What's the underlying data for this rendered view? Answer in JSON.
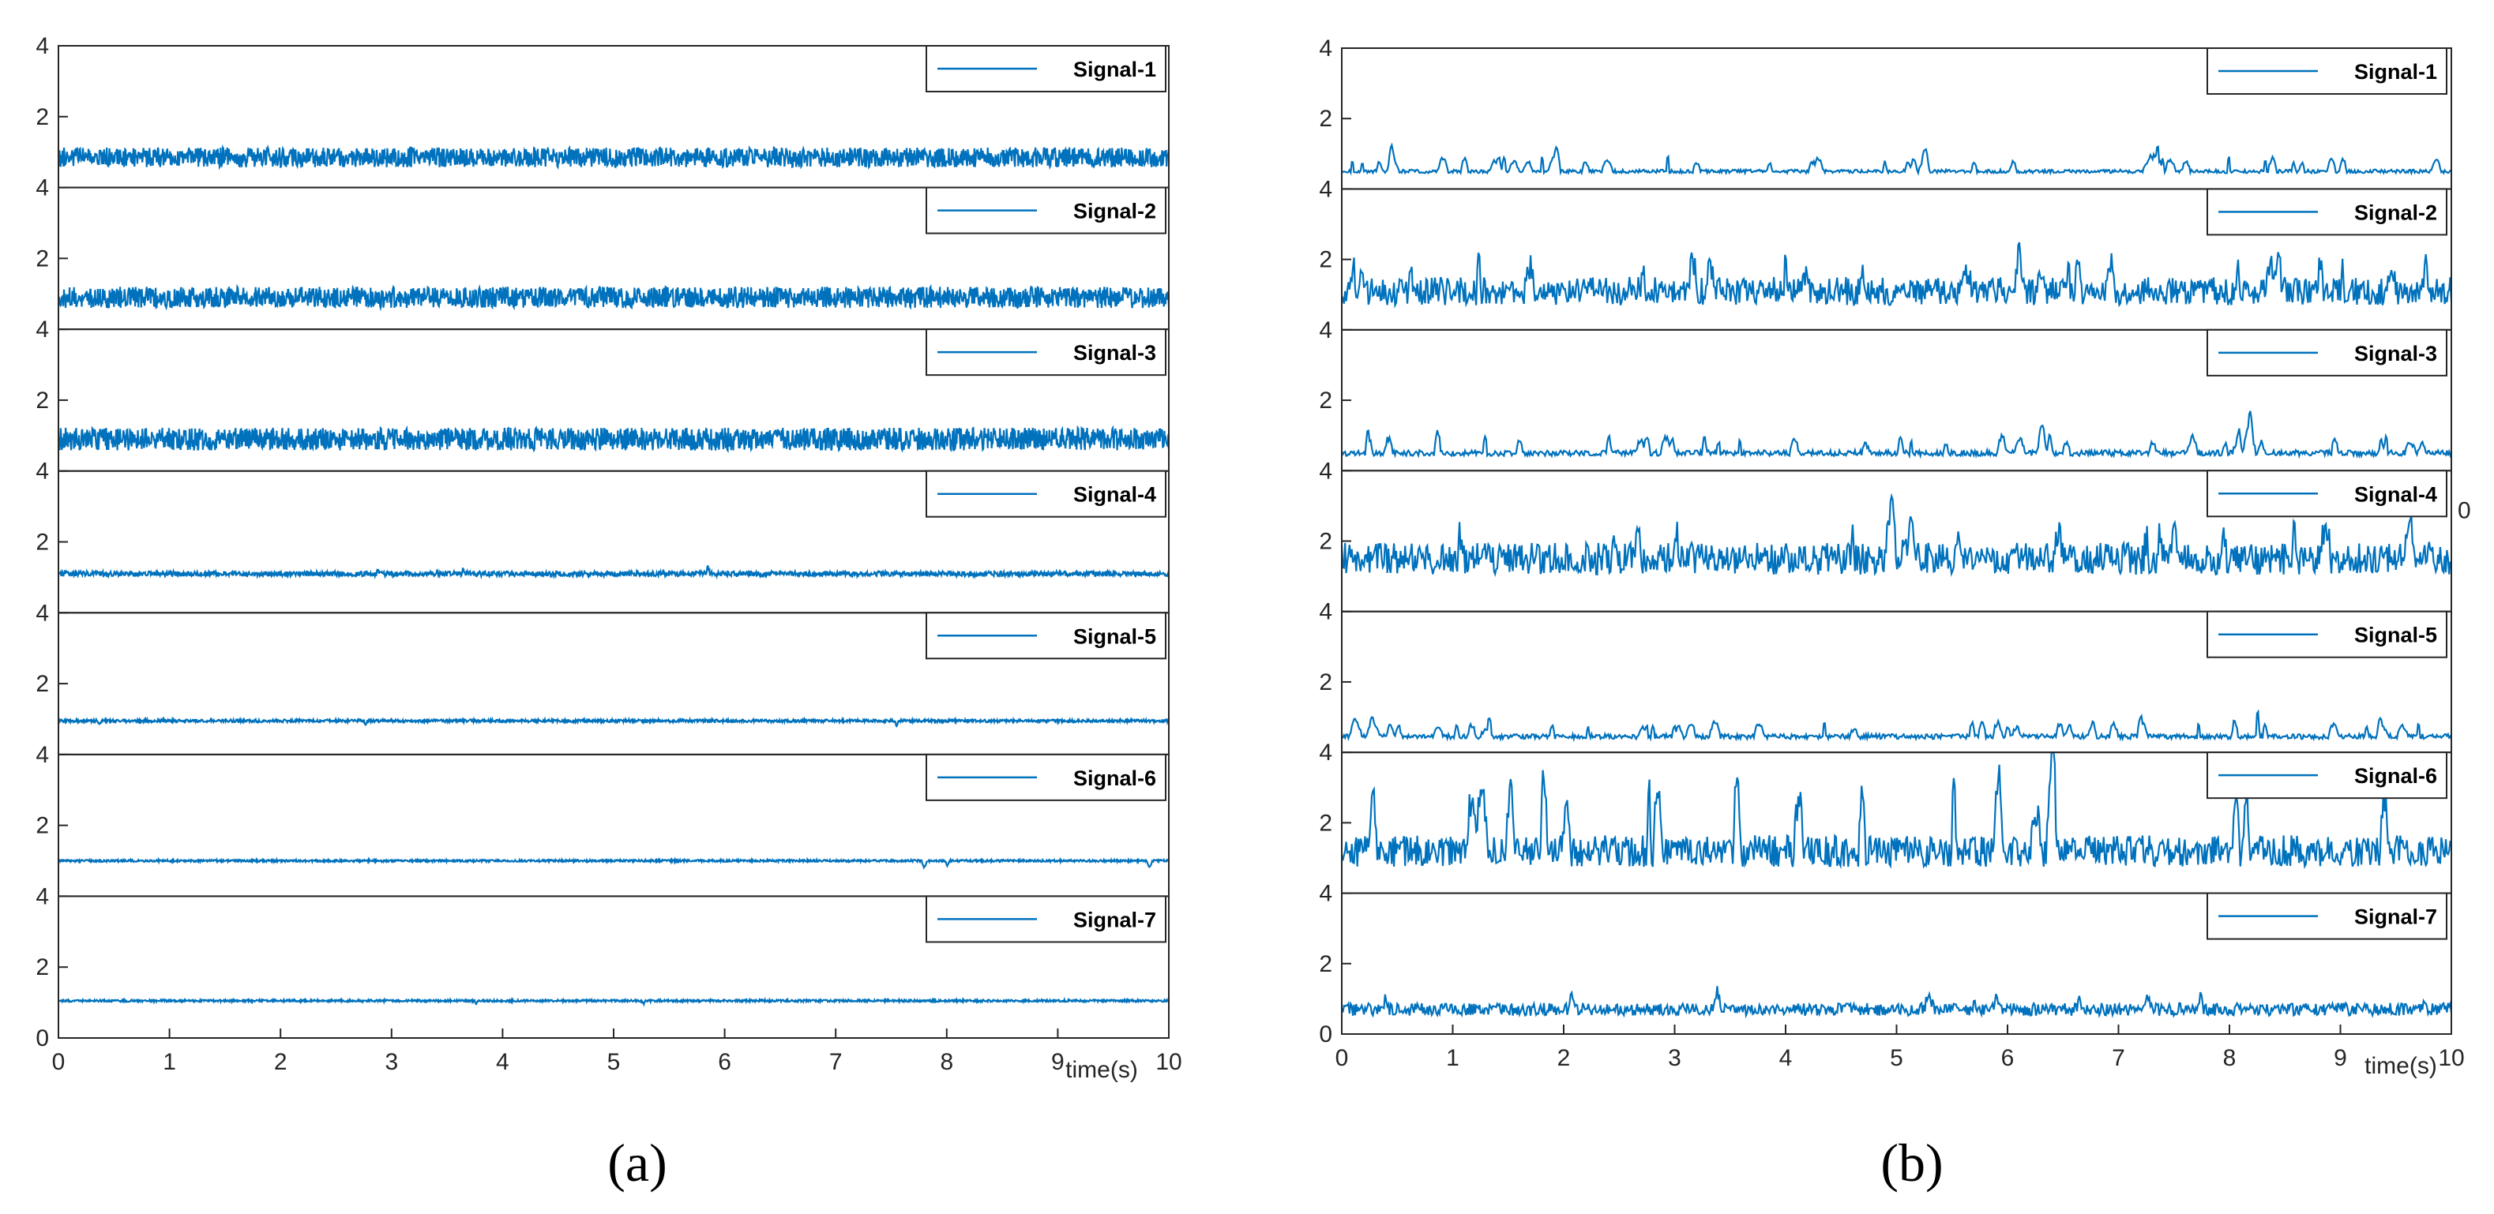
{
  "figure": {
    "panel_a_label": "(a)",
    "panel_b_label": "(b)"
  },
  "colors": {
    "series": "#0072bd",
    "axis": "#262626"
  },
  "chart_data": [
    {
      "type": "line",
      "panel": "(a)",
      "title": "",
      "xlabel": "time(s)",
      "ylabel": "",
      "x_ticks": [
        "0",
        "1",
        "2",
        "3",
        "4",
        "5",
        "6",
        "7",
        "8",
        "9",
        "10"
      ],
      "xlim": [
        0,
        10
      ],
      "ylim": [
        0,
        4
      ],
      "y_ticks": [
        "0",
        "2",
        "4"
      ],
      "legend_position": "top-right",
      "samples": 2000,
      "series": [
        {
          "name": "Signal-1",
          "baseline": 0.85,
          "noise_amp": 0.28,
          "spike_count": 0,
          "spike_height": 0,
          "seed": 11
        },
        {
          "name": "Signal-2",
          "baseline": 0.9,
          "noise_amp": 0.3,
          "spike_count": 0,
          "spike_height": 0,
          "seed": 12
        },
        {
          "name": "Signal-3",
          "baseline": 0.9,
          "noise_amp": 0.32,
          "spike_count": 0,
          "spike_height": 0,
          "seed": 13
        },
        {
          "name": "Signal-4",
          "baseline": 1.1,
          "noise_amp": 0.07,
          "spike_count": 3,
          "spike_height": 0.25,
          "seed": 14
        },
        {
          "name": "Signal-5",
          "baseline": 0.95,
          "noise_amp": 0.04,
          "spike_count": 3,
          "spike_height": -0.12,
          "seed": 15
        },
        {
          "name": "Signal-6",
          "baseline": 1.0,
          "noise_amp": 0.03,
          "spike_count": 3,
          "spike_height": -0.18,
          "seed": 16
        },
        {
          "name": "Signal-7",
          "baseline": 1.05,
          "noise_amp": 0.03,
          "spike_count": 2,
          "spike_height": -0.12,
          "seed": 17
        }
      ]
    },
    {
      "type": "line",
      "panel": "(b)",
      "title": "",
      "xlabel": "time(s)",
      "ylabel": "",
      "x_ticks": [
        "0",
        "1",
        "2",
        "3",
        "4",
        "5",
        "6",
        "7",
        "8",
        "9",
        "10"
      ],
      "xlim": [
        0,
        10
      ],
      "ylim": [
        0,
        4
      ],
      "y_ticks": [
        "0",
        "2",
        "4"
      ],
      "legend_position": "top-right",
      "samples": 1000,
      "extra_tick": "0",
      "series": [
        {
          "name": "Signal-1",
          "baseline": 0.5,
          "noise_amp": 0.05,
          "spike_count": 45,
          "spike_height": 0.45,
          "seed": 21
        },
        {
          "name": "Signal-2",
          "baseline": 1.1,
          "noise_amp": 0.4,
          "spike_count": 25,
          "spike_height": 0.9,
          "seed": 22
        },
        {
          "name": "Signal-3",
          "baseline": 0.5,
          "noise_amp": 0.08,
          "spike_count": 40,
          "spike_height": 0.5,
          "seed": 23
        },
        {
          "name": "Signal-4",
          "baseline": 1.5,
          "noise_amp": 0.45,
          "spike_count": 20,
          "spike_height": 1.0,
          "seed": 24
        },
        {
          "name": "Signal-5",
          "baseline": 0.45,
          "noise_amp": 0.07,
          "spike_count": 45,
          "spike_height": 0.45,
          "seed": 25
        },
        {
          "name": "Signal-6",
          "baseline": 1.2,
          "noise_amp": 0.45,
          "spike_count": 20,
          "spike_height": 2.2,
          "seed": 26
        },
        {
          "name": "Signal-7",
          "baseline": 0.7,
          "noise_amp": 0.18,
          "spike_count": 10,
          "spike_height": 0.5,
          "seed": 27
        }
      ]
    }
  ]
}
